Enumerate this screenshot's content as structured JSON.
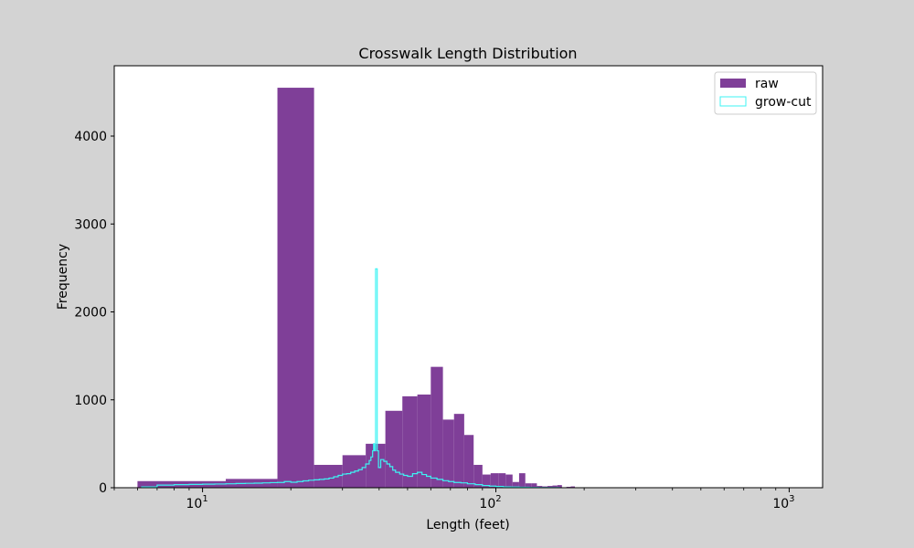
{
  "chart_data": {
    "type": "histogram",
    "title": "Crosswalk Length Distribution",
    "xlabel": "Length (feet)",
    "ylabel": "Frequency",
    "xscale": "log",
    "xlim": [
      5,
      1300
    ],
    "ylim": [
      0,
      4800
    ],
    "yticks": [
      0,
      1000,
      2000,
      3000,
      4000
    ],
    "xticks": [
      {
        "value": 10,
        "base": "10",
        "exp": "1"
      },
      {
        "value": 100,
        "base": "10",
        "exp": "2"
      },
      {
        "value": 1000,
        "base": "10",
        "exp": "3"
      }
    ],
    "grid": false,
    "legend_position": "top-right",
    "series": [
      {
        "name": "raw",
        "style": "filled",
        "color": "#7f3f98",
        "bins": [
          {
            "x0": 6,
            "x1": 12,
            "y": 75
          },
          {
            "x0": 12,
            "x1": 18,
            "y": 100
          },
          {
            "x0": 18,
            "x1": 24,
            "y": 4550
          },
          {
            "x0": 24,
            "x1": 30,
            "y": 260
          },
          {
            "x0": 30,
            "x1": 36,
            "y": 370
          },
          {
            "x0": 36,
            "x1": 42,
            "y": 500
          },
          {
            "x0": 42,
            "x1": 48,
            "y": 875
          },
          {
            "x0": 48,
            "x1": 54,
            "y": 1040
          },
          {
            "x0": 54,
            "x1": 60,
            "y": 1060
          },
          {
            "x0": 60,
            "x1": 66,
            "y": 1375
          },
          {
            "x0": 66,
            "x1": 72,
            "y": 775
          },
          {
            "x0": 72,
            "x1": 78,
            "y": 840
          },
          {
            "x0": 78,
            "x1": 84,
            "y": 600
          },
          {
            "x0": 84,
            "x1": 90,
            "y": 260
          },
          {
            "x0": 90,
            "x1": 96,
            "y": 150
          },
          {
            "x0": 96,
            "x1": 102,
            "y": 165
          },
          {
            "x0": 102,
            "x1": 108,
            "y": 165
          },
          {
            "x0": 108,
            "x1": 114,
            "y": 150
          },
          {
            "x0": 114,
            "x1": 120,
            "y": 65
          },
          {
            "x0": 120,
            "x1": 126,
            "y": 165
          },
          {
            "x0": 126,
            "x1": 132,
            "y": 50
          },
          {
            "x0": 132,
            "x1": 138,
            "y": 50
          },
          {
            "x0": 138,
            "x1": 144,
            "y": 20
          },
          {
            "x0": 144,
            "x1": 150,
            "y": 15
          },
          {
            "x0": 150,
            "x1": 156,
            "y": 20
          },
          {
            "x0": 156,
            "x1": 162,
            "y": 25
          },
          {
            "x0": 162,
            "x1": 168,
            "y": 30
          },
          {
            "x0": 168,
            "x1": 174,
            "y": 5
          },
          {
            "x0": 174,
            "x1": 180,
            "y": 10
          },
          {
            "x0": 180,
            "x1": 186,
            "y": 15
          },
          {
            "x0": 186,
            "x1": 200,
            "y": 5
          },
          {
            "x0": 200,
            "x1": 240,
            "y": 3
          },
          {
            "x0": 240,
            "x1": 300,
            "y": 2
          },
          {
            "x0": 300,
            "x1": 1000,
            "y": 1
          }
        ]
      },
      {
        "name": "grow-cut",
        "style": "step",
        "color": "#3ef3f3",
        "points": [
          [
            6.2,
            10
          ],
          [
            7,
            30
          ],
          [
            8,
            35
          ],
          [
            9,
            38
          ],
          [
            10,
            40
          ],
          [
            11,
            42
          ],
          [
            12,
            45
          ],
          [
            13,
            48
          ],
          [
            14,
            50
          ],
          [
            15,
            52
          ],
          [
            16,
            55
          ],
          [
            17,
            58
          ],
          [
            18,
            60
          ],
          [
            19,
            70
          ],
          [
            20,
            62
          ],
          [
            21,
            70
          ],
          [
            22,
            78
          ],
          [
            23,
            85
          ],
          [
            24,
            90
          ],
          [
            25,
            95
          ],
          [
            26,
            100
          ],
          [
            27,
            110
          ],
          [
            28,
            125
          ],
          [
            29,
            140
          ],
          [
            30,
            155
          ],
          [
            31,
            160
          ],
          [
            32,
            175
          ],
          [
            33,
            190
          ],
          [
            34,
            205
          ],
          [
            35,
            230
          ],
          [
            36,
            270
          ],
          [
            37,
            310
          ],
          [
            37.5,
            350
          ],
          [
            38,
            420
          ],
          [
            38.3,
            500
          ],
          [
            38.6,
            420
          ],
          [
            38.9,
            2490
          ],
          [
            39.4,
            420
          ],
          [
            39.8,
            230
          ],
          [
            40.5,
            320
          ],
          [
            41.5,
            300
          ],
          [
            42.5,
            270
          ],
          [
            43.5,
            240
          ],
          [
            44.5,
            200
          ],
          [
            45.5,
            175
          ],
          [
            47,
            155
          ],
          [
            48.5,
            140
          ],
          [
            50,
            130
          ],
          [
            52,
            160
          ],
          [
            54,
            175
          ],
          [
            56,
            150
          ],
          [
            58,
            130
          ],
          [
            60,
            110
          ],
          [
            63,
            95
          ],
          [
            66,
            80
          ],
          [
            69,
            70
          ],
          [
            72,
            60
          ],
          [
            76,
            55
          ],
          [
            80,
            45
          ],
          [
            85,
            35
          ],
          [
            90,
            25
          ],
          [
            95,
            18
          ],
          [
            100,
            14
          ],
          [
            106,
            10
          ],
          [
            112,
            8
          ],
          [
            120,
            5
          ],
          [
            130,
            3
          ],
          [
            140,
            2
          ],
          [
            160,
            1
          ]
        ]
      }
    ],
    "legend": [
      {
        "label": "raw",
        "swatch": "filled"
      },
      {
        "label": "grow-cut",
        "swatch": "outline"
      }
    ]
  }
}
